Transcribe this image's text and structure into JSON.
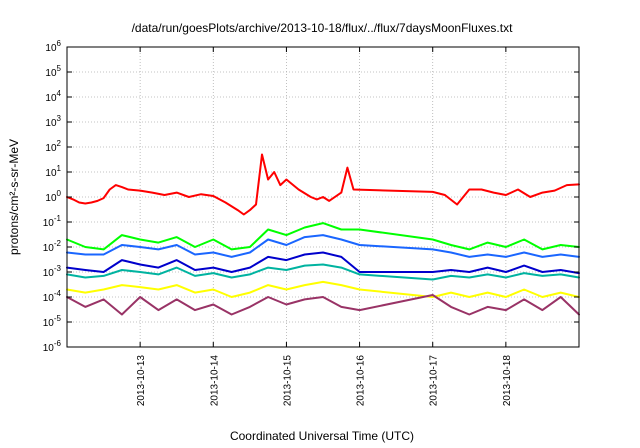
{
  "chart_data": {
    "type": "line",
    "title": "/data/run/goesPlots/archive/2013-10-18/flux/../flux/7daysMoonFluxes.txt",
    "xlabel": "Coordinated Universal Time (UTC)",
    "ylabel": "protons/cm²-s-sr-MeV",
    "yscale": "log",
    "ylim_exp": [
      -6,
      6
    ],
    "y_tick_labels": [
      {
        "base": "10",
        "exp": "6"
      },
      {
        "base": "10",
        "exp": "5"
      },
      {
        "base": "10",
        "exp": "4"
      },
      {
        "base": "10",
        "exp": "3"
      },
      {
        "base": "10",
        "exp": "2"
      },
      {
        "base": "10",
        "exp": "1"
      },
      {
        "base": "10",
        "exp": "0"
      },
      {
        "base": "10",
        "exp": "-1"
      },
      {
        "base": "10",
        "exp": "-2"
      },
      {
        "base": "10",
        "exp": "-3"
      },
      {
        "base": "10",
        "exp": "-4"
      },
      {
        "base": "10",
        "exp": "-5"
      },
      {
        "base": "10",
        "exp": "-6"
      }
    ],
    "x_tick_labels": [
      "2013-10-13",
      "2013-10-14",
      "2013-10-15",
      "2013-10-16",
      "2013-10-17",
      "2013-10-18"
    ],
    "xlim": [
      "2013-10-12",
      "2013-10-19"
    ],
    "grid": true,
    "series": [
      {
        "color": "#ff0000",
        "x": [
          "2013-10-12T00:00",
          "2013-10-12T02:00",
          "2013-10-12T04:00",
          "2013-10-12T06:00",
          "2013-10-12T08:00",
          "2013-10-12T10:00",
          "2013-10-12T12:00",
          "2013-10-12T14:00",
          "2013-10-12T16:00",
          "2013-10-12T18:00",
          "2013-10-12T20:00",
          "2013-10-13T00:00",
          "2013-10-13T04:00",
          "2013-10-13T08:00",
          "2013-10-13T12:00",
          "2013-10-13T16:00",
          "2013-10-13T20:00",
          "2013-10-14T00:00",
          "2013-10-14T04:00",
          "2013-10-14T08:00",
          "2013-10-14T10:00",
          "2013-10-14T12:00",
          "2013-10-14T14:00",
          "2013-10-14T16:00",
          "2013-10-14T18:00",
          "2013-10-14T20:00",
          "2013-10-14T22:00",
          "2013-10-15T00:00",
          "2013-10-15T04:00",
          "2013-10-15T08:00",
          "2013-10-15T10:00",
          "2013-10-15T12:00",
          "2013-10-15T14:00",
          "2013-10-15T18:00",
          "2013-10-15T20:00",
          "2013-10-15T22:00",
          "2013-10-17T00:00",
          "2013-10-17T04:00",
          "2013-10-17T08:00",
          "2013-10-17T12:00",
          "2013-10-17T16:00",
          "2013-10-17T20:00",
          "2013-10-18T00:00",
          "2013-10-18T04:00",
          "2013-10-18T08:00",
          "2013-10-18T12:00",
          "2013-10-18T16:00",
          "2013-10-18T20:00",
          "2013-10-19T00:00"
        ],
        "y": [
          1.0,
          0.8,
          0.6,
          0.55,
          0.6,
          0.7,
          0.9,
          2.0,
          3.0,
          2.5,
          2.0,
          1.8,
          1.5,
          1.2,
          1.5,
          1.0,
          1.3,
          1.1,
          0.6,
          0.3,
          0.2,
          0.3,
          0.5,
          50.0,
          5.0,
          10.0,
          3.0,
          5.0,
          2.0,
          1.0,
          0.8,
          1.0,
          0.7,
          1.5,
          15.0,
          2.0,
          1.6,
          1.2,
          0.5,
          2.0,
          2.0,
          1.5,
          1.2,
          2.0,
          1.0,
          1.5,
          1.8,
          3.0,
          3.2
        ]
      },
      {
        "color": "#00ff00",
        "x": [
          "2013-10-12T00:00",
          "2013-10-12T06:00",
          "2013-10-12T12:00",
          "2013-10-12T18:00",
          "2013-10-13T00:00",
          "2013-10-13T06:00",
          "2013-10-13T12:00",
          "2013-10-13T18:00",
          "2013-10-14T00:00",
          "2013-10-14T06:00",
          "2013-10-14T12:00",
          "2013-10-14T18:00",
          "2013-10-15T00:00",
          "2013-10-15T06:00",
          "2013-10-15T12:00",
          "2013-10-15T18:00",
          "2013-10-16T00:00",
          "2013-10-17T00:00",
          "2013-10-17T06:00",
          "2013-10-17T12:00",
          "2013-10-17T18:00",
          "2013-10-18T00:00",
          "2013-10-18T06:00",
          "2013-10-18T12:00",
          "2013-10-18T18:00",
          "2013-10-19T00:00"
        ],
        "y": [
          0.02,
          0.01,
          0.008,
          0.03,
          0.02,
          0.015,
          0.025,
          0.01,
          0.02,
          0.008,
          0.01,
          0.05,
          0.03,
          0.06,
          0.09,
          0.05,
          0.05,
          0.02,
          0.012,
          0.008,
          0.015,
          0.01,
          0.02,
          0.008,
          0.012,
          0.01
        ]
      },
      {
        "color": "#1a66ff",
        "x": [
          "2013-10-12T00:00",
          "2013-10-12T06:00",
          "2013-10-12T12:00",
          "2013-10-12T18:00",
          "2013-10-13T00:00",
          "2013-10-13T06:00",
          "2013-10-13T12:00",
          "2013-10-13T18:00",
          "2013-10-14T00:00",
          "2013-10-14T06:00",
          "2013-10-14T12:00",
          "2013-10-14T18:00",
          "2013-10-15T00:00",
          "2013-10-15T06:00",
          "2013-10-15T12:00",
          "2013-10-15T18:00",
          "2013-10-16T00:00",
          "2013-10-17T00:00",
          "2013-10-17T06:00",
          "2013-10-17T12:00",
          "2013-10-17T18:00",
          "2013-10-18T00:00",
          "2013-10-18T06:00",
          "2013-10-18T12:00",
          "2013-10-18T18:00",
          "2013-10-19T00:00"
        ],
        "y": [
          0.006,
          0.005,
          0.005,
          0.012,
          0.01,
          0.008,
          0.012,
          0.005,
          0.006,
          0.004,
          0.006,
          0.02,
          0.012,
          0.025,
          0.03,
          0.02,
          0.012,
          0.008,
          0.006,
          0.004,
          0.005,
          0.004,
          0.006,
          0.004,
          0.005,
          0.004
        ]
      },
      {
        "color": "#0000cc",
        "x": [
          "2013-10-12T00:00",
          "2013-10-12T06:00",
          "2013-10-12T12:00",
          "2013-10-12T18:00",
          "2013-10-13T00:00",
          "2013-10-13T06:00",
          "2013-10-13T12:00",
          "2013-10-13T18:00",
          "2013-10-14T00:00",
          "2013-10-14T06:00",
          "2013-10-14T12:00",
          "2013-10-14T18:00",
          "2013-10-15T00:00",
          "2013-10-15T06:00",
          "2013-10-15T12:00",
          "2013-10-15T18:00",
          "2013-10-16T00:00",
          "2013-10-17T00:00",
          "2013-10-17T06:00",
          "2013-10-17T12:00",
          "2013-10-17T18:00",
          "2013-10-18T00:00",
          "2013-10-18T06:00",
          "2013-10-18T12:00",
          "2013-10-18T18:00",
          "2013-10-19T00:00"
        ],
        "y": [
          0.0015,
          0.0012,
          0.001,
          0.003,
          0.002,
          0.0015,
          0.003,
          0.0012,
          0.0015,
          0.001,
          0.0015,
          0.004,
          0.003,
          0.005,
          0.006,
          0.004,
          0.001,
          0.001,
          0.0012,
          0.001,
          0.0015,
          0.001,
          0.0018,
          0.001,
          0.0012,
          0.0009
        ]
      },
      {
        "color": "#00b3a0",
        "x": [
          "2013-10-12T00:00",
          "2013-10-12T06:00",
          "2013-10-12T12:00",
          "2013-10-12T18:00",
          "2013-10-13T00:00",
          "2013-10-13T06:00",
          "2013-10-13T12:00",
          "2013-10-13T18:00",
          "2013-10-14T00:00",
          "2013-10-14T06:00",
          "2013-10-14T12:00",
          "2013-10-14T18:00",
          "2013-10-15T00:00",
          "2013-10-15T06:00",
          "2013-10-15T12:00",
          "2013-10-15T18:00",
          "2013-10-16T00:00",
          "2013-10-17T00:00",
          "2013-10-17T06:00",
          "2013-10-17T12:00",
          "2013-10-17T18:00",
          "2013-10-18T00:00",
          "2013-10-18T06:00",
          "2013-10-18T12:00",
          "2013-10-18T18:00",
          "2013-10-19T00:00"
        ],
        "y": [
          0.0008,
          0.0006,
          0.0007,
          0.0012,
          0.001,
          0.0008,
          0.0015,
          0.0007,
          0.0009,
          0.0006,
          0.0008,
          0.0015,
          0.0012,
          0.0018,
          0.002,
          0.0015,
          0.0008,
          0.0005,
          0.0007,
          0.0006,
          0.0008,
          0.0006,
          0.0009,
          0.0007,
          0.0008,
          0.0006
        ]
      },
      {
        "color": "#ffff00",
        "x": [
          "2013-10-12T00:00",
          "2013-10-12T06:00",
          "2013-10-12T12:00",
          "2013-10-12T18:00",
          "2013-10-13T00:00",
          "2013-10-13T06:00",
          "2013-10-13T12:00",
          "2013-10-13T18:00",
          "2013-10-14T00:00",
          "2013-10-14T06:00",
          "2013-10-14T12:00",
          "2013-10-14T18:00",
          "2013-10-15T00:00",
          "2013-10-15T06:00",
          "2013-10-15T12:00",
          "2013-10-15T18:00",
          "2013-10-16T00:00",
          "2013-10-17T00:00",
          "2013-10-17T06:00",
          "2013-10-17T12:00",
          "2013-10-17T18:00",
          "2013-10-18T00:00",
          "2013-10-18T06:00",
          "2013-10-18T12:00",
          "2013-10-18T18:00",
          "2013-10-19T00:00"
        ],
        "y": [
          0.0002,
          0.00015,
          0.0002,
          0.0003,
          0.00025,
          0.0002,
          0.0003,
          0.00015,
          0.0002,
          0.0001,
          0.00015,
          0.0003,
          0.0002,
          0.0003,
          0.0004,
          0.0003,
          0.0002,
          0.0001,
          0.00015,
          0.0001,
          0.00015,
          0.0001,
          0.0002,
          0.0001,
          0.00015,
          0.0001
        ]
      },
      {
        "color": "#993366",
        "x": [
          "2013-10-12T00:00",
          "2013-10-12T06:00",
          "2013-10-12T12:00",
          "2013-10-12T18:00",
          "2013-10-13T00:00",
          "2013-10-13T06:00",
          "2013-10-13T12:00",
          "2013-10-13T18:00",
          "2013-10-14T00:00",
          "2013-10-14T06:00",
          "2013-10-14T12:00",
          "2013-10-14T18:00",
          "2013-10-15T00:00",
          "2013-10-15T06:00",
          "2013-10-15T12:00",
          "2013-10-15T18:00",
          "2013-10-16T00:00",
          "2013-10-17T00:00",
          "2013-10-17T06:00",
          "2013-10-17T12:00",
          "2013-10-17T18:00",
          "2013-10-18T00:00",
          "2013-10-18T06:00",
          "2013-10-18T12:00",
          "2013-10-18T18:00",
          "2013-10-19T00:00"
        ],
        "y": [
          0.0001,
          4e-05,
          8e-05,
          2e-05,
          0.0001,
          3e-05,
          8e-05,
          3e-05,
          5e-05,
          2e-05,
          4e-05,
          0.0001,
          5e-05,
          8e-05,
          0.0001,
          4e-05,
          3e-05,
          0.00012,
          4e-05,
          2e-05,
          4e-05,
          3e-05,
          8e-05,
          3e-05,
          0.0001,
          2e-05
        ]
      }
    ]
  }
}
